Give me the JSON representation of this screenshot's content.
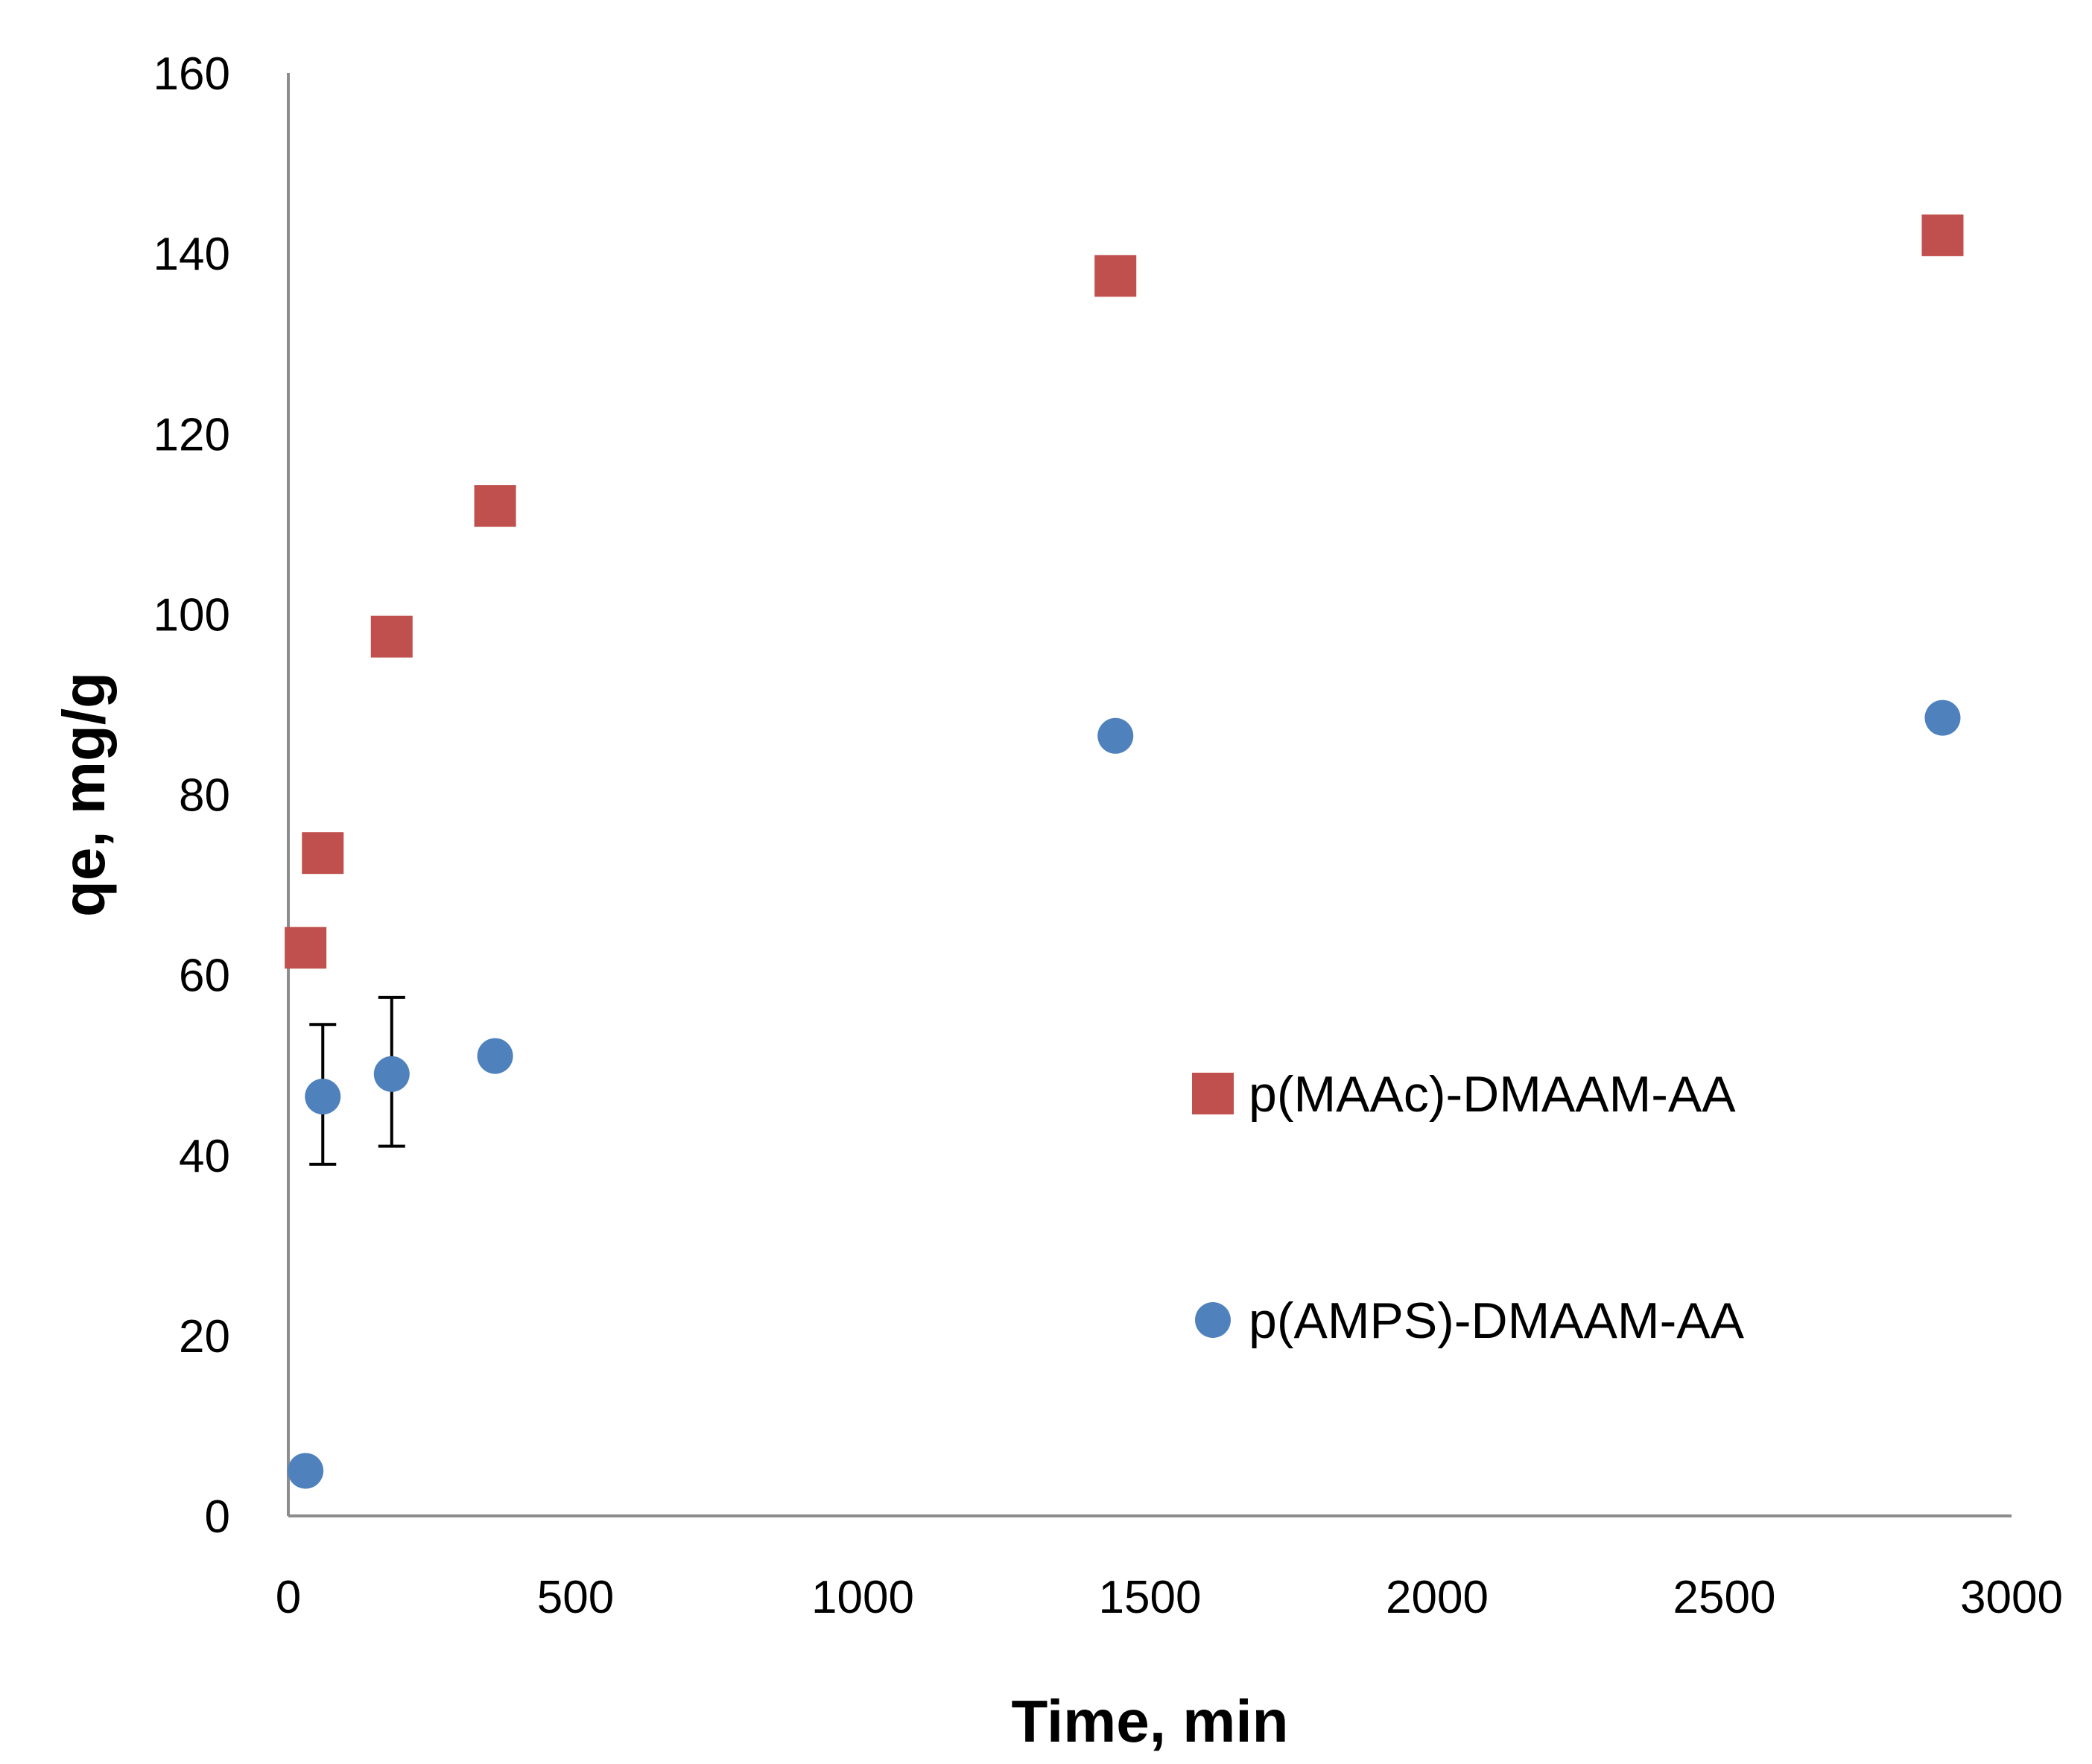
{
  "chart_data": {
    "type": "scatter",
    "title": "",
    "xlabel": "Time, min",
    "ylabel": "qe, mg/g",
    "xlim": [
      0,
      3000
    ],
    "ylim": [
      0,
      160
    ],
    "xticks": [
      0,
      500,
      1000,
      1500,
      2000,
      2500,
      3000
    ],
    "yticks": [
      0,
      20,
      40,
      60,
      80,
      100,
      120,
      140,
      160
    ],
    "grid": false,
    "legend_position": "right",
    "series": [
      {
        "name": "p(MAAc)-DMAAM-AA",
        "marker": "square",
        "color": "#c0504d",
        "points": [
          {
            "x": 30,
            "y": 63
          },
          {
            "x": 60,
            "y": 73.5
          },
          {
            "x": 180,
            "y": 97.5
          },
          {
            "x": 360,
            "y": 112
          },
          {
            "x": 1440,
            "y": 137.5
          },
          {
            "x": 2880,
            "y": 142
          }
        ]
      },
      {
        "name": "p(AMPS)-DMAAM-AA",
        "marker": "circle",
        "color": "#4f81bd",
        "points": [
          {
            "x": 30,
            "y": 5
          },
          {
            "x": 60,
            "y": 46.5,
            "err_low": 39,
            "err_high": 54.5
          },
          {
            "x": 180,
            "y": 49,
            "err_low": 41,
            "err_high": 57.5
          },
          {
            "x": 360,
            "y": 51
          },
          {
            "x": 1440,
            "y": 86.5
          },
          {
            "x": 2880,
            "y": 88.5
          }
        ]
      }
    ]
  }
}
